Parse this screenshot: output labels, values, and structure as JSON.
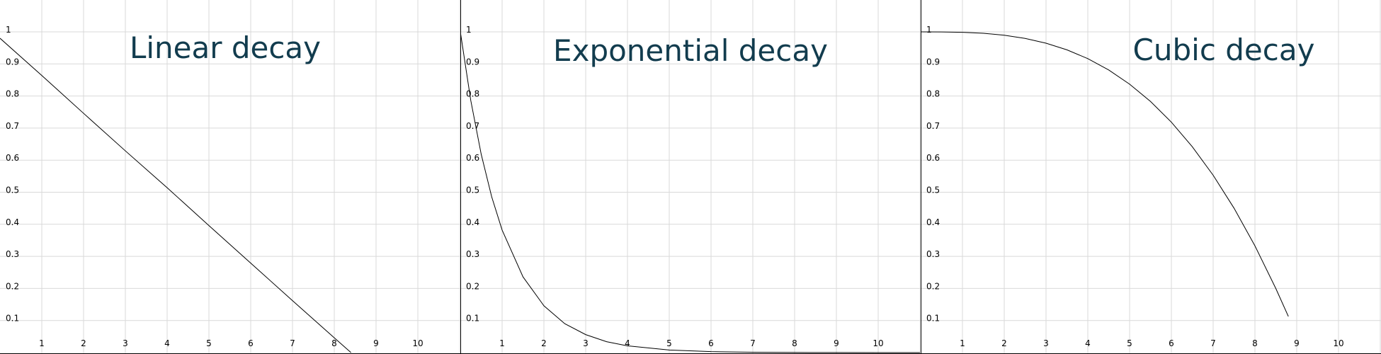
{
  "theme": {
    "grid_color": "#d9d9d9",
    "curve_color": "#000000",
    "title_color": "#123c4e",
    "background": "#ffffff"
  },
  "chart_data": [
    {
      "type": "line",
      "title": "Linear decay",
      "xlabel": "",
      "ylabel": "",
      "xlim": [
        0,
        11
      ],
      "ylim": [
        0,
        1.1
      ],
      "grid": true,
      "x_ticks": [
        "1",
        "2",
        "3",
        "4",
        "5",
        "6",
        "7",
        "8",
        "9",
        "10"
      ],
      "y_ticks": [
        "0.1",
        "0.2",
        "0.3",
        "0.4",
        "0.5",
        "0.6",
        "0.7",
        "0.8",
        "0.9",
        "1"
      ],
      "series": [
        {
          "x": [
            0,
            1,
            2,
            3,
            4,
            5,
            6,
            7,
            8,
            8.4
          ],
          "y": [
            0.98,
            0.864,
            0.746,
            0.629,
            0.514,
            0.396,
            0.279,
            0.162,
            0.046,
            0.0
          ]
        }
      ]
    },
    {
      "type": "line",
      "title": "Exponential decay",
      "xlabel": "",
      "ylabel": "",
      "xlim": [
        0,
        11
      ],
      "ylim": [
        0,
        1.1
      ],
      "grid": true,
      "x_ticks": [
        "1",
        "2",
        "3",
        "4",
        "5",
        "6",
        "7",
        "8",
        "9",
        "10"
      ],
      "y_ticks": [
        "0.1",
        "0.2",
        "0.3",
        "0.4",
        "0.5",
        "0.6",
        "0.7",
        "0.8",
        "0.9",
        "1"
      ],
      "series": [
        {
          "x": [
            0,
            0.25,
            0.5,
            0.75,
            1,
            1.5,
            2,
            2.5,
            3,
            3.5,
            4,
            5,
            6,
            7,
            8,
            9,
            10,
            11
          ],
          "y": [
            1.0,
            0.786,
            0.618,
            0.486,
            0.382,
            0.236,
            0.146,
            0.09,
            0.056,
            0.034,
            0.021,
            0.008,
            0.003,
            0.001,
            0.0005,
            0.0002,
            0.0001,
            0.0
          ]
        }
      ]
    },
    {
      "type": "line",
      "title": "Cubic decay",
      "xlabel": "",
      "ylabel": "",
      "xlim": [
        0,
        11
      ],
      "ylim": [
        0,
        1.1
      ],
      "grid": true,
      "x_ticks": [
        "1",
        "2",
        "3",
        "4",
        "5",
        "6",
        "7",
        "8",
        "9",
        "10"
      ],
      "y_ticks": [
        "0.1",
        "0.2",
        "0.3",
        "0.4",
        "0.5",
        "0.6",
        "0.7",
        "0.8",
        "0.9",
        "1"
      ],
      "series": [
        {
          "x": [
            0,
            0.5,
            1,
            1.5,
            2,
            2.5,
            3,
            3.5,
            4,
            4.5,
            5,
            5.5,
            6,
            6.5,
            7,
            7.5,
            8,
            8.5,
            8.8
          ],
          "y": [
            1.0,
            0.9998,
            0.9987,
            0.9956,
            0.9895,
            0.9796,
            0.9647,
            0.944,
            0.9165,
            0.8811,
            0.837,
            0.7831,
            0.7184,
            0.642,
            0.553,
            0.4502,
            0.3328,
            0.1998,
            0.1128
          ]
        }
      ]
    }
  ]
}
